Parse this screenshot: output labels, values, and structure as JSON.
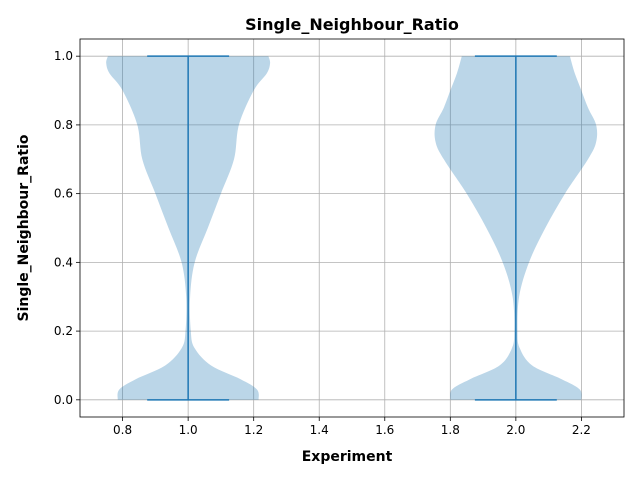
{
  "chart_data": {
    "type": "violin",
    "title": "Single_Neighbour_Ratio",
    "xlabel": "Experiment",
    "ylabel": "Single_Neighbour_Ratio",
    "xlim": [
      0.67,
      2.33
    ],
    "ylim": [
      -0.05,
      1.05
    ],
    "xticks": [
      "0.8",
      "1.0",
      "1.2",
      "1.4",
      "1.6",
      "1.8",
      "2.0",
      "2.2"
    ],
    "yticks": [
      "0.0",
      "0.2",
      "0.4",
      "0.6",
      "0.8",
      "1.0"
    ],
    "grid": true,
    "color": "#1f77b4",
    "violins": [
      {
        "position": 1.0,
        "min": 0.0,
        "max": 1.0,
        "cap_halfwidth": 0.125,
        "profile": [
          [
            0.0,
            0.215
          ],
          [
            0.03,
            0.21
          ],
          [
            0.06,
            0.16
          ],
          [
            0.1,
            0.07
          ],
          [
            0.15,
            0.02
          ],
          [
            0.2,
            0.008
          ],
          [
            0.3,
            0.006
          ],
          [
            0.4,
            0.02
          ],
          [
            0.5,
            0.06
          ],
          [
            0.6,
            0.1
          ],
          [
            0.7,
            0.14
          ],
          [
            0.8,
            0.155
          ],
          [
            0.9,
            0.2
          ],
          [
            0.95,
            0.24
          ],
          [
            0.98,
            0.25
          ],
          [
            1.0,
            0.245
          ]
        ]
      },
      {
        "position": 2.0,
        "min": 0.0,
        "max": 1.0,
        "cap_halfwidth": 0.125,
        "profile": [
          [
            0.0,
            0.2
          ],
          [
            0.03,
            0.195
          ],
          [
            0.06,
            0.14
          ],
          [
            0.1,
            0.05
          ],
          [
            0.15,
            0.012
          ],
          [
            0.2,
            0.005
          ],
          [
            0.3,
            0.01
          ],
          [
            0.4,
            0.04
          ],
          [
            0.5,
            0.09
          ],
          [
            0.6,
            0.15
          ],
          [
            0.7,
            0.22
          ],
          [
            0.75,
            0.245
          ],
          [
            0.8,
            0.245
          ],
          [
            0.85,
            0.22
          ],
          [
            0.9,
            0.2
          ],
          [
            0.95,
            0.18
          ],
          [
            1.0,
            0.165
          ]
        ]
      }
    ]
  }
}
